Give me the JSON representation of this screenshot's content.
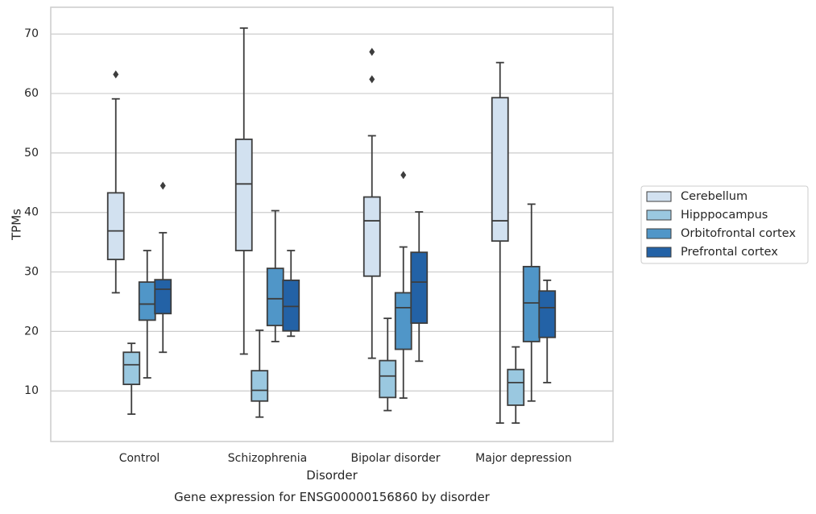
{
  "chart_data": {
    "type": "boxplot",
    "title": "Gene expression for ENSG00000156860 by disorder",
    "xlabel": "Disorder",
    "ylabel": "TPMs",
    "ylim": [
      1.5,
      74.5
    ],
    "yticks": [
      10,
      20,
      30,
      40,
      50,
      60,
      70
    ],
    "grid": "horizontal",
    "legend_position": "right",
    "categories": [
      "Control",
      "Schizophrenia",
      "Bipolar disorder",
      "Major depression"
    ],
    "series": [
      {
        "name": "Cerebellum",
        "color": "#d2e1f0",
        "boxes": [
          {
            "whisker_low": 26.5,
            "q1": 32.1,
            "median": 36.9,
            "q3": 43.3,
            "whisker_high": 59.1,
            "outliers": [
              63.2
            ]
          },
          {
            "whisker_low": 16.2,
            "q1": 33.6,
            "median": 44.8,
            "q3": 52.3,
            "whisker_high": 71.0,
            "outliers": []
          },
          {
            "whisker_low": 15.5,
            "q1": 29.3,
            "median": 38.6,
            "q3": 42.6,
            "whisker_high": 52.9,
            "outliers": [
              67.0,
              62.4
            ]
          },
          {
            "whisker_low": 4.6,
            "q1": 35.2,
            "median": 38.6,
            "q3": 59.3,
            "whisker_high": 65.2,
            "outliers": []
          }
        ]
      },
      {
        "name": "Hipppocampus",
        "color": "#9ac8e0",
        "boxes": [
          {
            "whisker_low": 6.1,
            "q1": 11.1,
            "median": 14.4,
            "q3": 16.5,
            "whisker_high": 18.0,
            "outliers": []
          },
          {
            "whisker_low": 5.6,
            "q1": 8.3,
            "median": 10.1,
            "q3": 13.4,
            "whisker_high": 20.2,
            "outliers": []
          },
          {
            "whisker_low": 6.7,
            "q1": 8.9,
            "median": 12.5,
            "q3": 15.1,
            "whisker_high": 22.2,
            "outliers": []
          },
          {
            "whisker_low": 4.6,
            "q1": 7.6,
            "median": 11.4,
            "q3": 13.6,
            "whisker_high": 17.4,
            "outliers": []
          }
        ]
      },
      {
        "name": "Orbitofrontal cortex",
        "color": "#5096c8",
        "boxes": [
          {
            "whisker_low": 12.2,
            "q1": 21.9,
            "median": 24.6,
            "q3": 28.3,
            "whisker_high": 33.6,
            "outliers": []
          },
          {
            "whisker_low": 18.3,
            "q1": 21.0,
            "median": 25.5,
            "q3": 30.6,
            "whisker_high": 40.3,
            "outliers": []
          },
          {
            "whisker_low": 8.8,
            "q1": 17.0,
            "median": 24.0,
            "q3": 26.5,
            "whisker_high": 34.2,
            "outliers": [
              46.3
            ]
          },
          {
            "whisker_low": 8.3,
            "q1": 18.3,
            "median": 24.8,
            "q3": 30.9,
            "whisker_high": 41.4,
            "outliers": []
          }
        ]
      },
      {
        "name": "Prefrontal cortex",
        "color": "#2362a6",
        "boxes": [
          {
            "whisker_low": 16.5,
            "q1": 23.0,
            "median": 27.1,
            "q3": 28.7,
            "whisker_high": 36.6,
            "outliers": [
              44.5
            ]
          },
          {
            "whisker_low": 19.2,
            "q1": 20.1,
            "median": 24.2,
            "q3": 28.6,
            "whisker_high": 33.6,
            "outliers": []
          },
          {
            "whisker_low": 15.0,
            "q1": 21.4,
            "median": 28.3,
            "q3": 33.3,
            "whisker_high": 40.1,
            "outliers": []
          },
          {
            "whisker_low": 11.4,
            "q1": 19.0,
            "median": 24.0,
            "q3": 26.8,
            "whisker_high": 28.6,
            "outliers": []
          }
        ]
      }
    ]
  }
}
